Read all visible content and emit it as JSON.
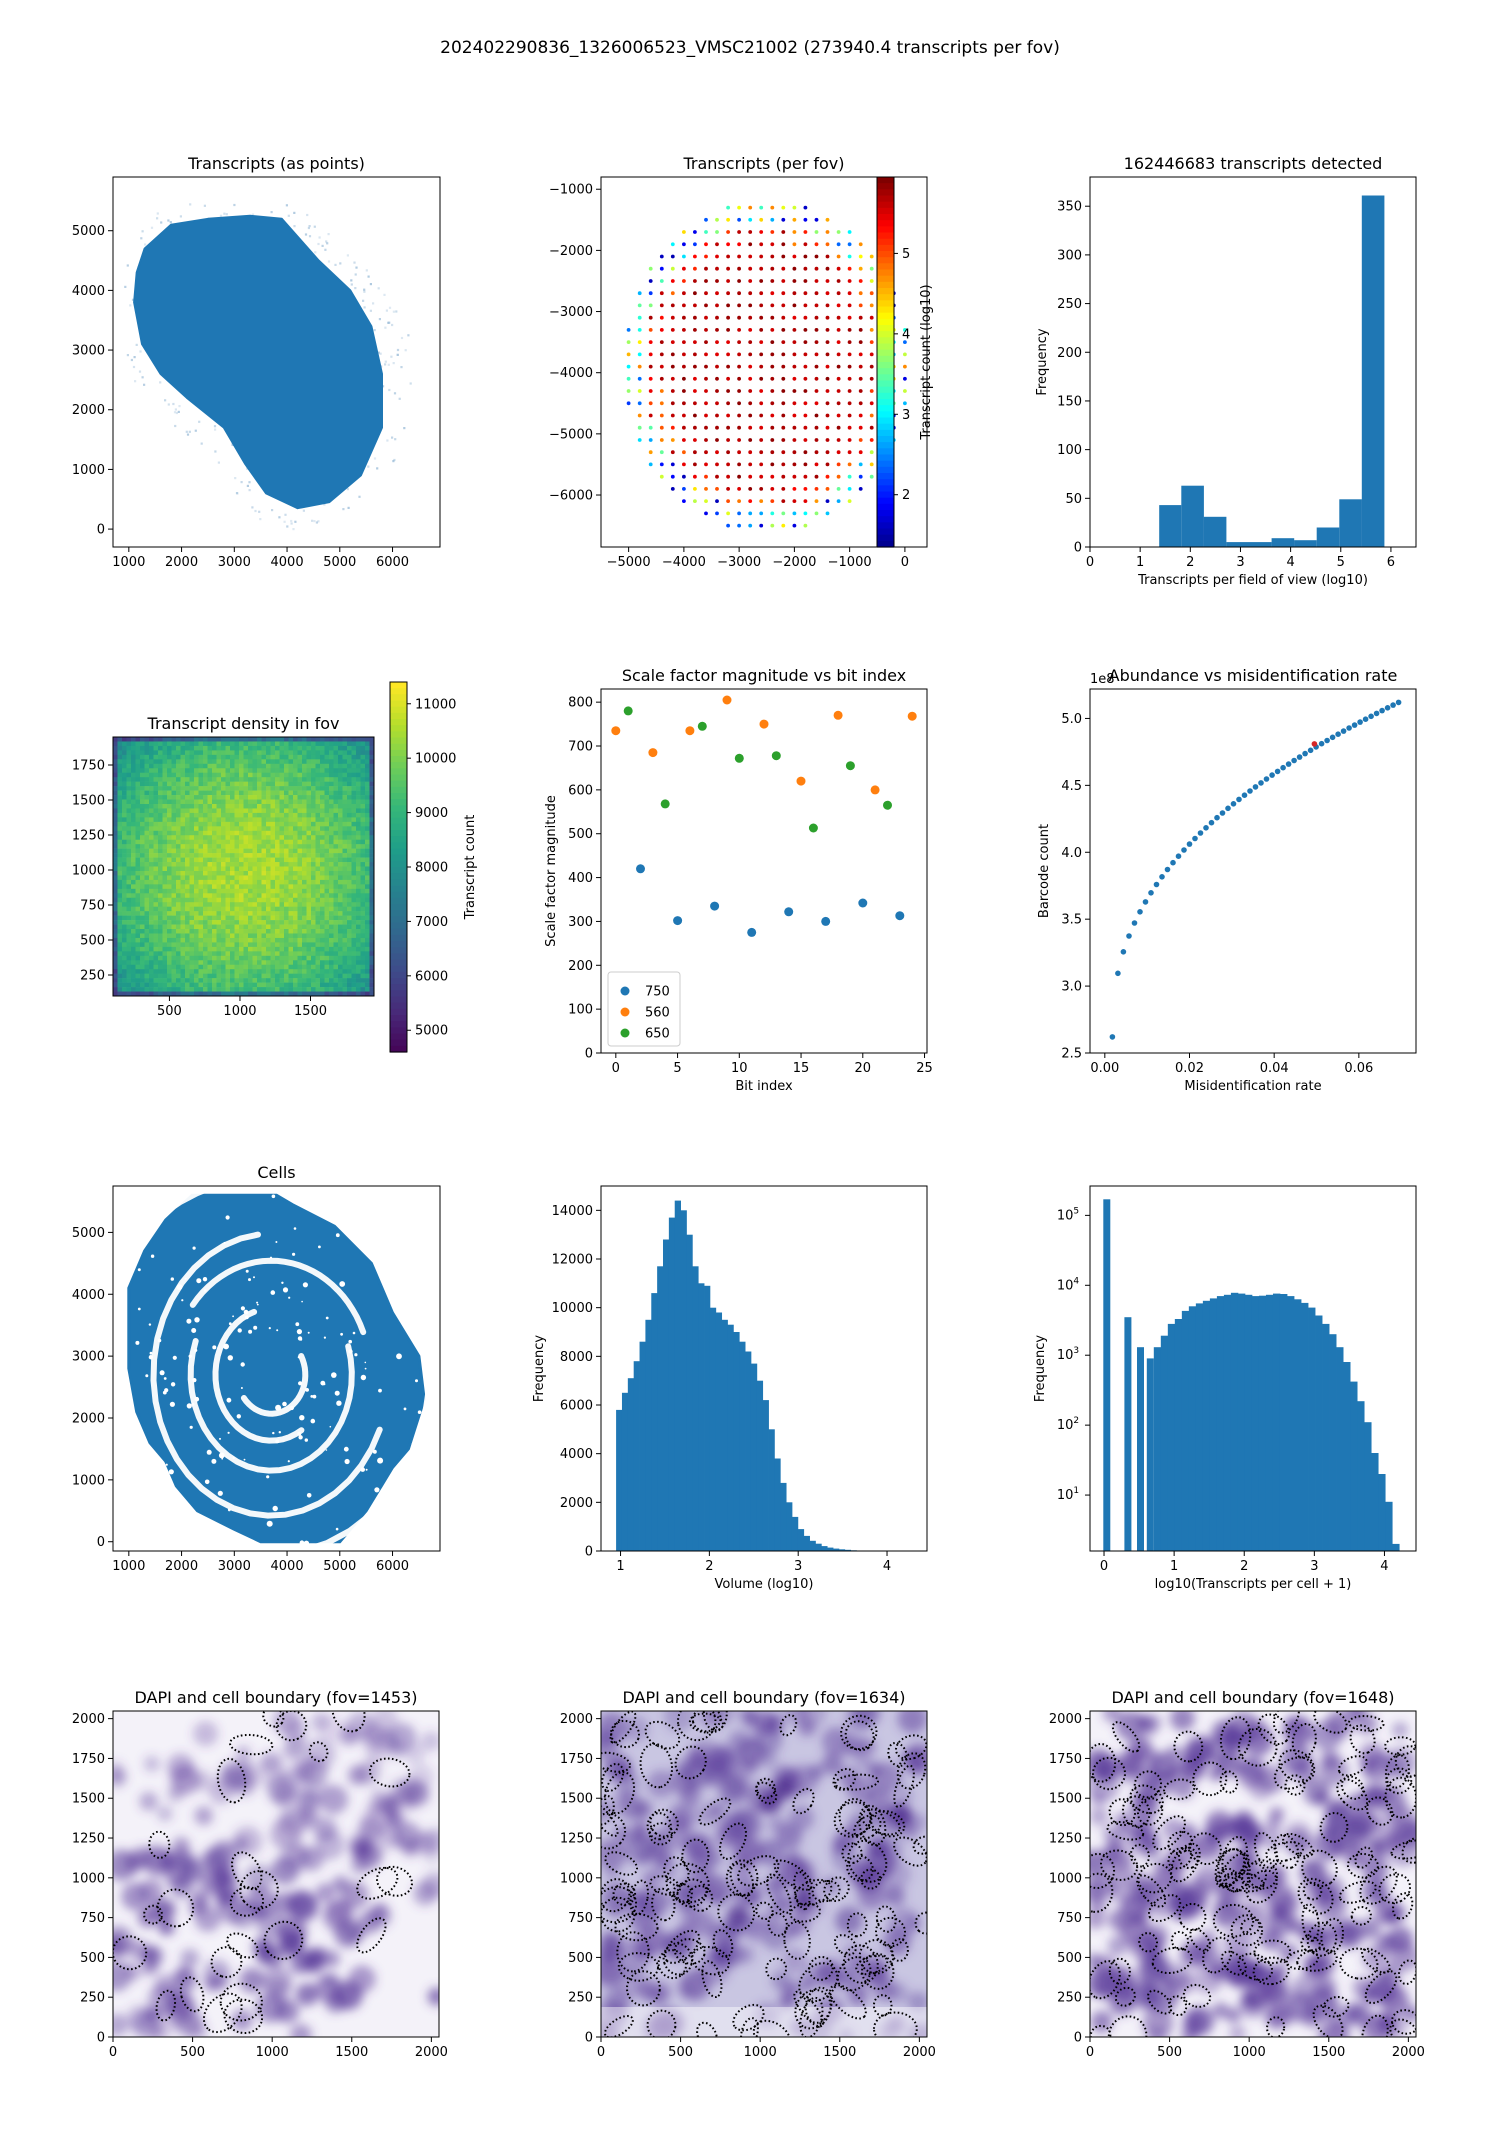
{
  "figure": {
    "suptitle": "202402290836_1326006523_VMSC21002 (273940.4 transcripts per fov)"
  },
  "chart_data": [
    {
      "id": "transcripts-points",
      "type": "scatter",
      "title": "Transcripts (as points)",
      "xlabel": "",
      "ylabel": "",
      "xlim": [
        700,
        6900
      ],
      "ylim": [
        -300,
        5900
      ],
      "xticks": [
        1000,
        2000,
        3000,
        4000,
        5000,
        6000
      ],
      "yticks": [
        0,
        1000,
        2000,
        3000,
        4000,
        5000
      ],
      "color": "#1f77b4",
      "outline": [
        [
          1300,
          4700
        ],
        [
          1800,
          5100
        ],
        [
          2500,
          5200
        ],
        [
          3300,
          5250
        ],
        [
          3900,
          5200
        ],
        [
          4100,
          5000
        ],
        [
          4600,
          4500
        ],
        [
          5200,
          4000
        ],
        [
          5600,
          3400
        ],
        [
          5800,
          2600
        ],
        [
          5800,
          1700
        ],
        [
          5400,
          900
        ],
        [
          4800,
          450
        ],
        [
          4200,
          350
        ],
        [
          3600,
          600
        ],
        [
          3200,
          1100
        ],
        [
          2800,
          1700
        ],
        [
          2100,
          2200
        ],
        [
          1600,
          2600
        ],
        [
          1250,
          3100
        ],
        [
          1100,
          3800
        ],
        [
          1150,
          4300
        ]
      ],
      "halo": [
        [
          950,
          4800
        ],
        [
          1500,
          5300
        ],
        [
          2300,
          5500
        ],
        [
          3300,
          5600
        ],
        [
          4300,
          5400
        ],
        [
          5000,
          4800
        ],
        [
          5700,
          4200
        ],
        [
          6300,
          3300
        ],
        [
          6400,
          2200
        ],
        [
          6000,
          1100
        ],
        [
          5200,
          200
        ],
        [
          4200,
          -50
        ],
        [
          3300,
          200
        ],
        [
          2700,
          900
        ],
        [
          2200,
          1500
        ],
        [
          1500,
          2000
        ],
        [
          950,
          2600
        ],
        [
          800,
          3700
        ]
      ]
    },
    {
      "id": "transcripts-per-fov",
      "type": "scatter",
      "title": "Transcripts (per fov)",
      "xlim": [
        -5500,
        400
      ],
      "ylim": [
        -6850,
        -800
      ],
      "xticks": [
        -5000,
        -4000,
        -3000,
        -2000,
        -1000,
        0
      ],
      "yticks": [
        -6000,
        -5000,
        -4000,
        -3000,
        -2000,
        -1000
      ],
      "fov_spacing": 200,
      "tissue_center": [
        -2500,
        -3900
      ],
      "tissue_radii": [
        2600,
        2750
      ],
      "colorbar": {
        "label": "Transcript count (log10)",
        "range": [
          1.35,
          5.95
        ],
        "ticks": [
          2,
          3,
          4,
          5
        ],
        "cmap": "jet"
      }
    },
    {
      "id": "fov-histogram",
      "type": "bar",
      "title": "162446683 transcripts detected",
      "xlabel": "Transcripts per field of view (log10)",
      "ylabel": "Frequency",
      "xlim": [
        0,
        6.5
      ],
      "ylim": [
        0,
        380
      ],
      "xticks": [
        0,
        1,
        2,
        3,
        4,
        5,
        6
      ],
      "yticks": [
        0,
        50,
        100,
        150,
        200,
        250,
        300,
        350
      ],
      "bin_edges": [
        1.38,
        1.82,
        2.27,
        2.72,
        3.17,
        3.62,
        4.07,
        4.52,
        4.97,
        5.42,
        5.87
      ],
      "values": [
        43,
        63,
        31,
        5,
        5,
        9,
        7,
        20,
        49,
        361
      ],
      "color": "#1f77b4"
    },
    {
      "id": "transcript-density",
      "type": "heatmap",
      "title": "Transcript density in fov",
      "xlim": [
        100,
        1950
      ],
      "ylim": [
        100,
        1950
      ],
      "xticks": [
        500,
        1000,
        1500
      ],
      "yticks": [
        250,
        500,
        750,
        1000,
        1250,
        1500,
        1750
      ],
      "colorbar": {
        "label": "Transcript count",
        "range": [
          4600,
          11400
        ],
        "ticks": [
          5000,
          6000,
          7000,
          8000,
          9000,
          10000,
          11000
        ],
        "cmap": "viridis"
      },
      "typical_range": [
        8000,
        10500
      ]
    },
    {
      "id": "scale-factor",
      "type": "scatter",
      "title": "Scale factor magnitude vs bit index",
      "xlabel": "Bit index",
      "ylabel": "Scale factor magnitude",
      "xlim": [
        -1.2,
        25.2
      ],
      "ylim": [
        0,
        830
      ],
      "xticks": [
        0,
        5,
        10,
        15,
        20,
        25
      ],
      "yticks": [
        0,
        100,
        200,
        300,
        400,
        500,
        600,
        700,
        800
      ],
      "legend_position": "lower left",
      "series": [
        {
          "name": "750",
          "color": "#1f77b4",
          "x": [
            2,
            5,
            8,
            11,
            14,
            17,
            20,
            23
          ],
          "y": [
            420,
            302,
            335,
            275,
            322,
            300,
            342,
            313
          ]
        },
        {
          "name": "560",
          "color": "#ff7f0e",
          "x": [
            0,
            3,
            6,
            9,
            12,
            15,
            18,
            21,
            24
          ],
          "y": [
            735,
            685,
            735,
            805,
            750,
            620,
            770,
            600,
            768
          ]
        },
        {
          "name": "650",
          "color": "#2ca02c",
          "x": [
            1,
            4,
            7,
            10,
            13,
            16,
            19,
            22
          ],
          "y": [
            780,
            568,
            745,
            672,
            678,
            513,
            655,
            565
          ]
        }
      ]
    },
    {
      "id": "abundance-misid",
      "type": "scatter",
      "title": "Abundance vs misidentification rate",
      "xlabel": "Misidentification rate",
      "ylabel": "Barcode count",
      "offset_text": "1e8",
      "xlim": [
        -0.0035,
        0.0735
      ],
      "ylim": [
        2.5,
        5.22
      ],
      "xticks": [
        0.0,
        0.02,
        0.04,
        0.06
      ],
      "xtick_labels": [
        "0.00",
        "0.02",
        "0.04",
        "0.06"
      ],
      "yticks": [
        2.5,
        3.0,
        3.5,
        4.0,
        4.5,
        5.0
      ],
      "ytick_labels": [
        "2.5",
        "3.0",
        "3.5",
        "4.0",
        "4.5",
        "5.0"
      ],
      "x_start": 0.0018,
      "x_step": 0.0013,
      "count": 53,
      "y_start": 2.62,
      "y_end": 5.12,
      "highlight": {
        "x": 0.0495,
        "y": 4.81,
        "color": "#d62728"
      },
      "color": "#1f77b4"
    },
    {
      "id": "cells",
      "type": "scatter",
      "title": "Cells",
      "xlim": [
        700,
        6900
      ],
      "ylim": [
        -150,
        5750
      ],
      "xticks": [
        1000,
        2000,
        3000,
        4000,
        5000,
        6000
      ],
      "yticks": [
        0,
        1000,
        2000,
        3000,
        4000,
        5000
      ],
      "color": "#1f77b4",
      "outline": [
        [
          2200,
          5600
        ],
        [
          3800,
          5600
        ],
        [
          4100,
          5450
        ],
        [
          4900,
          5100
        ],
        [
          5600,
          4500
        ],
        [
          6000,
          3700
        ],
        [
          6500,
          3000
        ],
        [
          6600,
          2300
        ],
        [
          6300,
          1500
        ],
        [
          6000,
          1200
        ],
        [
          5500,
          500
        ],
        [
          5000,
          0
        ],
        [
          3500,
          0
        ],
        [
          3000,
          200
        ],
        [
          2300,
          500
        ],
        [
          1900,
          900
        ],
        [
          1700,
          1300
        ],
        [
          1400,
          1600
        ],
        [
          1150,
          2100
        ],
        [
          1000,
          2800
        ],
        [
          1000,
          4100
        ],
        [
          1300,
          4700
        ],
        [
          1700,
          5200
        ]
      ]
    },
    {
      "id": "volume-histogram",
      "type": "bar",
      "title": "",
      "xlabel": "Volume (log10)",
      "ylabel": "Frequency",
      "xlim": [
        0.78,
        4.45
      ],
      "ylim": [
        0,
        15000
      ],
      "xticks": [
        1,
        2,
        3,
        4
      ],
      "yticks": [
        0,
        2000,
        4000,
        6000,
        8000,
        10000,
        12000,
        14000
      ],
      "bin_start": 0.95,
      "bin_width": 0.066,
      "values": [
        5800,
        6500,
        7100,
        7800,
        8600,
        9500,
        10600,
        11700,
        12800,
        13700,
        14400,
        14000,
        13000,
        11700,
        11000,
        10900,
        10000,
        9800,
        9500,
        9300,
        9000,
        8600,
        8200,
        7700,
        7000,
        6200,
        5000,
        3800,
        2800,
        2000,
        1400,
        900,
        620,
        420,
        300,
        200,
        140,
        100,
        70,
        50,
        30,
        20,
        10,
        5,
        3,
        2,
        1,
        1
      ],
      "color": "#1f77b4"
    },
    {
      "id": "transcripts-per-cell",
      "type": "bar",
      "title": "",
      "xlabel": "log10(Transcripts per cell + 1)",
      "ylabel": "Frequency",
      "log_y": true,
      "xlim": [
        -0.2,
        4.45
      ],
      "ylim_log": [
        0.2,
        5.42
      ],
      "xticks": [
        0,
        1,
        2,
        3,
        4
      ],
      "yticks_exp": [
        1,
        2,
        3,
        4,
        5
      ],
      "ytick_base": "10",
      "bars": [
        {
          "x0": -0.01,
          "x1": 0.09,
          "v": 170000
        },
        {
          "x0": 0.29,
          "x1": 0.39,
          "v": 3500
        },
        {
          "x0": 0.47,
          "x1": 0.57,
          "v": 1300
        },
        {
          "x0": 0.61,
          "x1": 0.71,
          "v": 900
        }
      ],
      "bin_start": 0.71,
      "bin_width": 0.1,
      "values": [
        1300,
        1900,
        2800,
        3300,
        4300,
        5000,
        5500,
        6000,
        6500,
        7000,
        7300,
        7800,
        7600,
        7300,
        7000,
        7100,
        7300,
        7600,
        7500,
        7000,
        6300,
        5600,
        4800,
        3700,
        2800,
        2000,
        1300,
        800,
        420,
        220,
        110,
        40,
        20,
        8,
        2
      ],
      "color": "#1f77b4"
    },
    {
      "id": "dapi-1453",
      "type": "heatmap",
      "title": "DAPI and cell boundary (fov=1453)",
      "xlim": [
        0,
        2048
      ],
      "ylim": [
        0,
        2048
      ],
      "xticks": [
        0,
        500,
        1000,
        1500,
        2000
      ],
      "yticks": [
        0,
        250,
        500,
        750,
        1000,
        1250,
        1500,
        1750,
        2000
      ],
      "cmap": "Purples",
      "seed": 1453
    },
    {
      "id": "dapi-1634",
      "type": "heatmap",
      "title": "DAPI and cell boundary (fov=1634)",
      "xlim": [
        0,
        2048
      ],
      "ylim": [
        0,
        2048
      ],
      "xticks": [
        0,
        500,
        1000,
        1500,
        2000
      ],
      "yticks": [
        0,
        250,
        500,
        750,
        1000,
        1250,
        1500,
        1750,
        2000
      ],
      "cmap": "Purples",
      "seed": 1634
    },
    {
      "id": "dapi-1648",
      "type": "heatmap",
      "title": "DAPI and cell boundary (fov=1648)",
      "xlim": [
        0,
        2048
      ],
      "ylim": [
        0,
        2048
      ],
      "xticks": [
        0,
        500,
        1000,
        1500,
        2000
      ],
      "yticks": [
        0,
        250,
        500,
        750,
        1000,
        1250,
        1500,
        1750,
        2000
      ],
      "cmap": "Purples",
      "seed": 1648
    }
  ]
}
